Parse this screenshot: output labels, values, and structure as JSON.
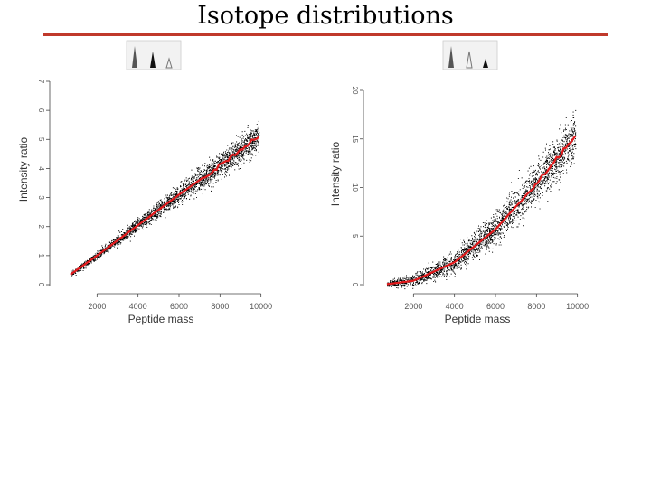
{
  "slide": {
    "title": "Isotope distributions"
  },
  "colors": {
    "title_rule": "#c0392b",
    "points": "#000000",
    "trend": "#e31a1c",
    "axis": "#444444",
    "peak_fill": "#555555"
  },
  "chart_data": [
    {
      "type": "scatter",
      "title": "",
      "xlabel": "Peptide mass",
      "ylabel": "Intensity ratio",
      "xlim": [
        0,
        10500
      ],
      "ylim": [
        0,
        7
      ],
      "x_ticks": [
        "2000",
        "4000",
        "6000",
        "8000",
        "10000"
      ],
      "y_ticks": [
        "0",
        "1",
        "2",
        "3",
        "4",
        "5",
        "6",
        "7"
      ],
      "grid": false,
      "legend": "none",
      "inset_icon": "isotope-peaks-first-vs-second-icon",
      "series": [
        {
          "kind": "points",
          "x_range": [
            700,
            9900
          ],
          "trend": {
            "x": [
              700,
              2000,
              4000,
              6000,
              8000,
              9900
            ],
            "y": [
              0.35,
              1.0,
              2.05,
              3.1,
              4.1,
              5.1
            ]
          },
          "spread_sd_at_max": 0.25
        },
        {
          "kind": "line",
          "x": [
            700,
            2000,
            4000,
            6000,
            8000,
            9000,
            9900
          ],
          "y": [
            0.35,
            1.0,
            2.05,
            3.1,
            4.1,
            4.65,
            5.1
          ]
        }
      ]
    },
    {
      "type": "scatter",
      "title": "",
      "xlabel": "Peptide mass",
      "ylabel": "Intensity ratio",
      "xlim": [
        0,
        10500
      ],
      "ylim": [
        0,
        20
      ],
      "x_ticks": [
        "2000",
        "4000",
        "6000",
        "8000",
        "10000"
      ],
      "y_ticks": [
        "0",
        "5",
        "10",
        "15",
        "20"
      ],
      "grid": false,
      "legend": "none",
      "inset_icon": "isotope-peaks-first-vs-third-icon",
      "series": [
        {
          "kind": "points",
          "x_range": [
            700,
            9900
          ],
          "trend": {
            "x": [
              700,
              2000,
              4000,
              6000,
              8000,
              9000,
              9900
            ],
            "y": [
              0.05,
              0.4,
              2.3,
              5.7,
              10.4,
              13.0,
              15.4
            ]
          },
          "spread_sd_at_max": 1.2
        },
        {
          "kind": "line",
          "x": [
            700,
            2000,
            4000,
            6000,
            8000,
            9000,
            9900
          ],
          "y": [
            0.05,
            0.4,
            2.3,
            5.7,
            10.4,
            13.0,
            15.4
          ]
        }
      ]
    }
  ]
}
